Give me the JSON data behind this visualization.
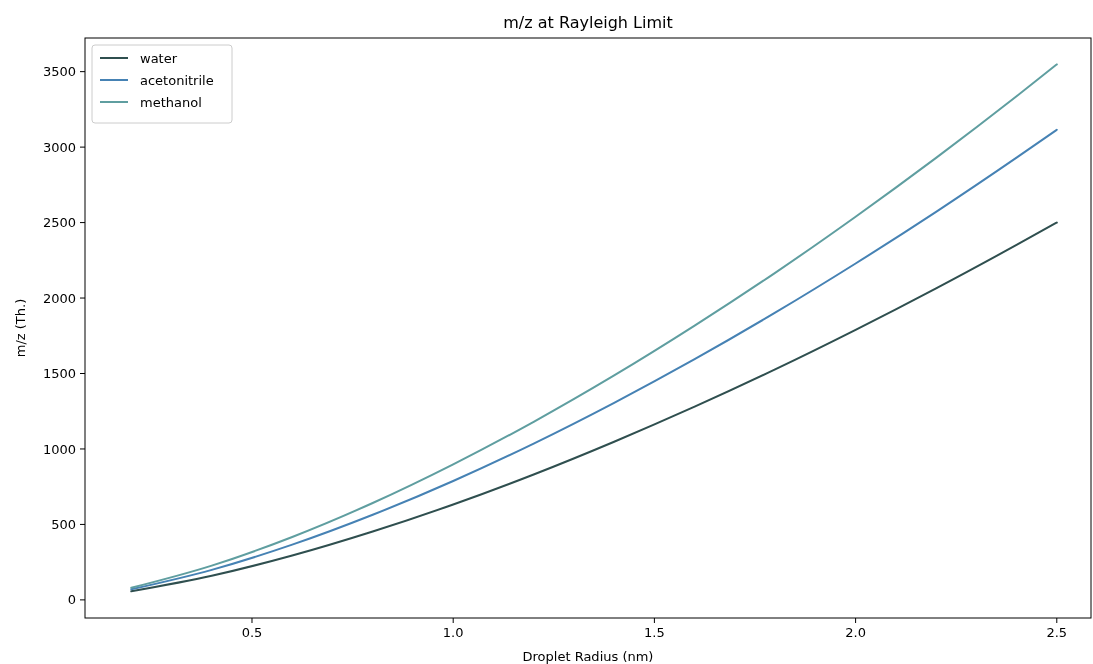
{
  "chart_data": {
    "type": "line",
    "title": "m/z at Rayleigh Limit",
    "xlabel": "Droplet Radius (nm)",
    "ylabel": "m/z (Th.)",
    "x": [
      0.2,
      0.4,
      0.6,
      0.8,
      1.0,
      1.2,
      1.4,
      1.6,
      1.8,
      2.0,
      2.2,
      2.4,
      2.5
    ],
    "series": [
      {
        "name": "water",
        "color": "#2f4f4f",
        "values": [
          57,
          160,
          294,
          453,
          632,
          831,
          1048,
          1280,
          1527,
          1789,
          2064,
          2352,
          2500
        ]
      },
      {
        "name": "acetonitrile",
        "color": "#4682b4",
        "values": [
          70,
          199,
          366,
          564,
          788,
          1036,
          1306,
          1595,
          1903,
          2229,
          2571,
          2930,
          3115
        ]
      },
      {
        "name": "methanol",
        "color": "#5f9ea0",
        "values": [
          80,
          227,
          417,
          642,
          898,
          1180,
          1487,
          1817,
          2167,
          2539,
          2929,
          3337,
          3548
        ]
      }
    ],
    "xlim": [
      0.085,
      2.585
    ],
    "xticks": [
      0.5,
      {
        "value": 1,
        "label": "1.0"
      },
      1.5,
      {
        "value": 2,
        "label": "2.0"
      },
      2.5
    ],
    "ylim": [
      -120,
      3723
    ],
    "yticks": [
      0,
      500,
      1000,
      1500,
      2000,
      2500,
      3000,
      3500
    ],
    "grid": false,
    "legend": "top left",
    "marker": "none",
    "line_style": "solid"
  }
}
